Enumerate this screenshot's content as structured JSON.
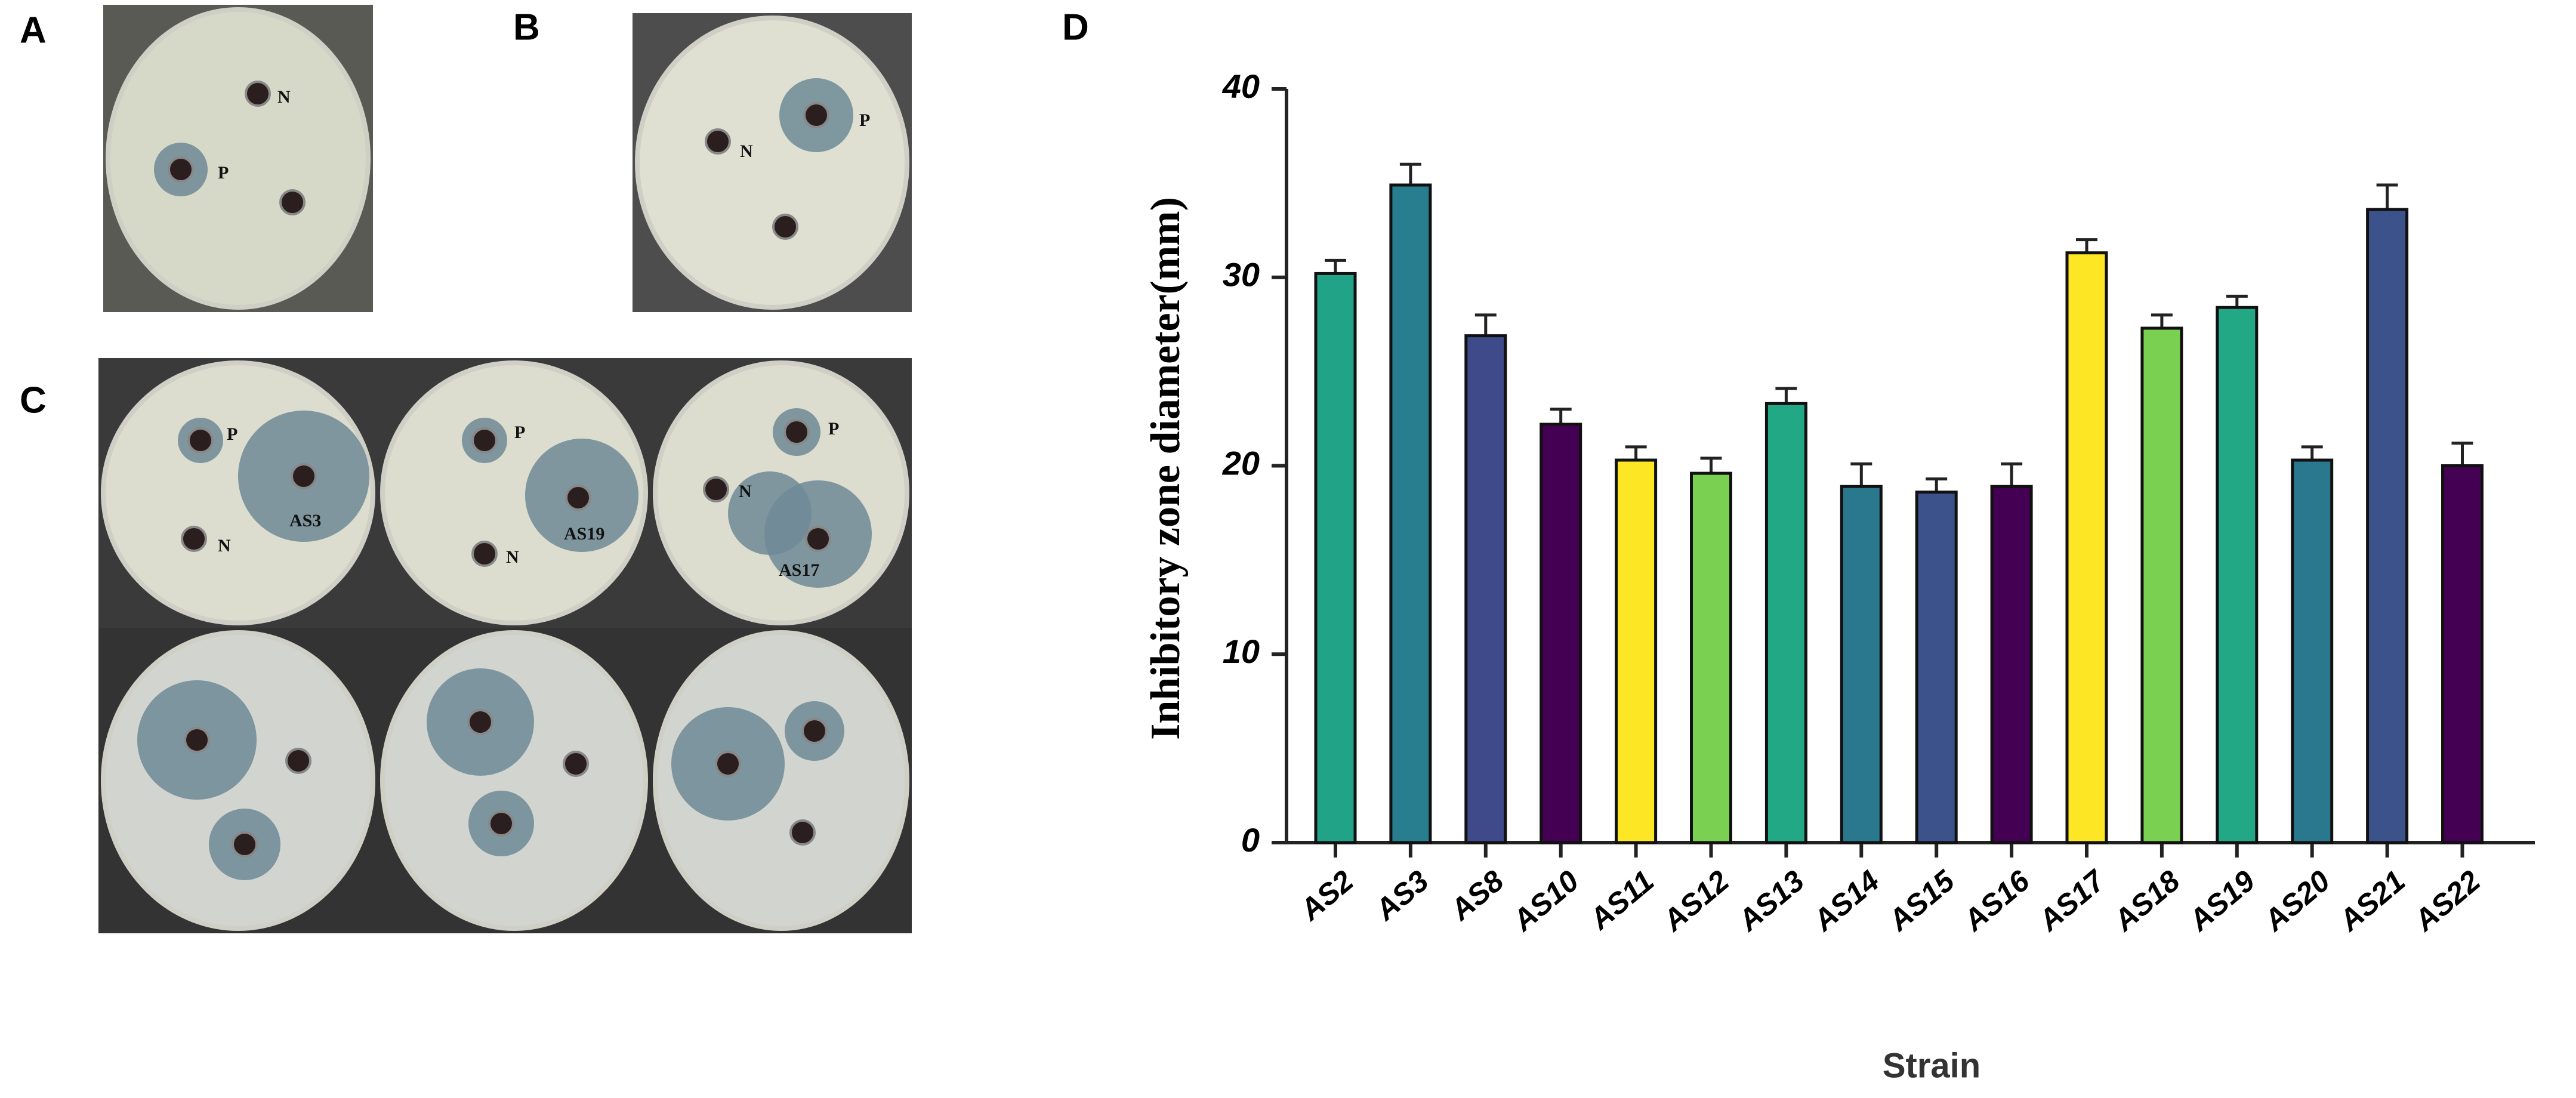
{
  "panel_labels": [
    "A",
    "B",
    "C",
    "D"
  ],
  "photo_labels": {
    "A": [
      "N",
      "P"
    ],
    "B": [
      "N",
      "P"
    ],
    "C1": [
      "P",
      "AS3",
      "N"
    ],
    "C2": [
      "P",
      "AS19",
      "N"
    ],
    "C3": [
      "P",
      "N",
      "AS17"
    ]
  },
  "chart_data": {
    "type": "bar",
    "x_label": "Strain",
    "y_label": "Inhibitory zone diameter(mm)",
    "categories": [
      "AS2",
      "AS3",
      "AS8",
      "AS10",
      "AS11",
      "AS12",
      "AS13",
      "AS14",
      "AS15",
      "AS16",
      "AS17",
      "AS18",
      "AS19",
      "AS20",
      "AS21",
      "AS22"
    ],
    "values": [
      30.2,
      34.9,
      26.9,
      22.2,
      20.3,
      19.6,
      23.3,
      18.9,
      18.6,
      18.9,
      31.3,
      27.3,
      28.4,
      20.3,
      33.6,
      20.0
    ],
    "errors": [
      0.7,
      1.1,
      1.1,
      0.8,
      0.7,
      0.8,
      0.8,
      1.2,
      0.7,
      1.2,
      0.7,
      0.7,
      0.6,
      0.7,
      1.3,
      1.2
    ],
    "colors": [
      "#20a386",
      "#287d8e",
      "#3e4a89",
      "#440154",
      "#fde725",
      "#7ad151",
      "#22a884",
      "#2a788e",
      "#3b528b",
      "#440154",
      "#fde725",
      "#7ad151",
      "#22a884",
      "#2a788e",
      "#3b528b",
      "#440154"
    ],
    "ylim": [
      0,
      40
    ],
    "yticks": [
      0,
      10,
      20,
      30,
      40
    ]
  }
}
